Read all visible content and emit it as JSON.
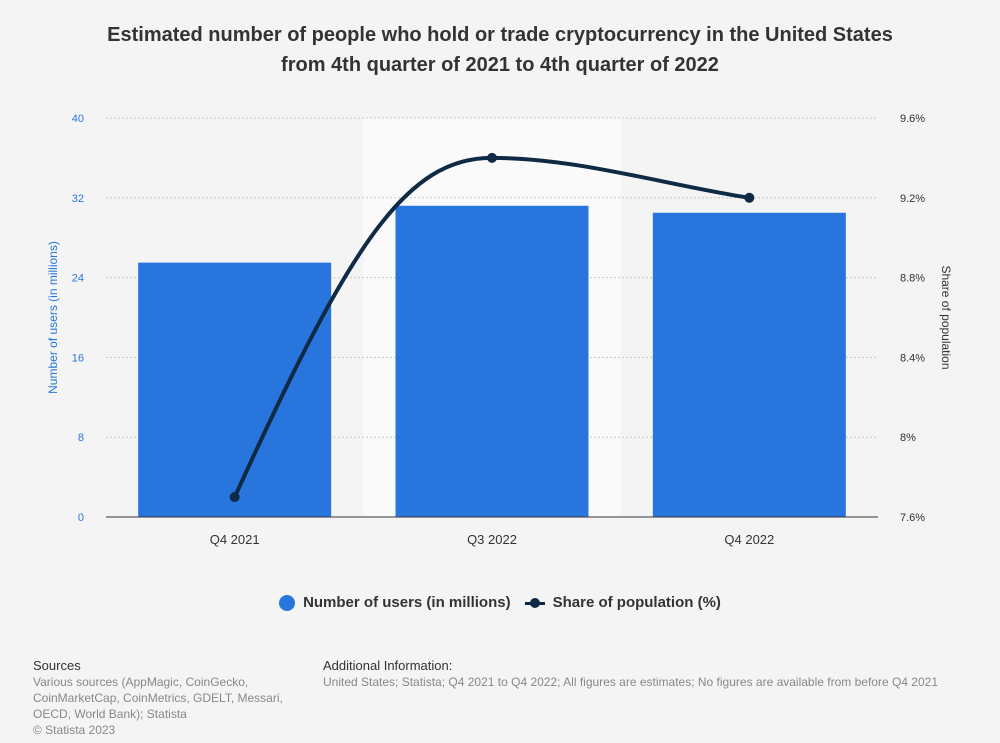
{
  "chart_data": {
    "type": "bar",
    "title": "Estimated number of people who hold or trade cryptocurrency in the United States from 4th quarter of 2021 to 4th quarter of 2022",
    "categories": [
      "Q4 2021",
      "Q3 2022",
      "Q4 2022"
    ],
    "series": [
      {
        "name": "Number of users (in millions)",
        "type": "bar",
        "axis": "left",
        "values": [
          25.5,
          31.2,
          30.5
        ]
      },
      {
        "name": "Share of population (%)",
        "type": "line",
        "axis": "right",
        "values": [
          7.7,
          9.4,
          9.2
        ]
      }
    ],
    "ylabel": "Number of users (in millions)",
    "ylim": [
      0,
      40
    ],
    "yticks": [
      "0",
      "8",
      "16",
      "24",
      "32",
      "40"
    ],
    "y2label": "Share of population",
    "y2lim": [
      7.6,
      9.6
    ],
    "y2ticks": [
      "7.6%",
      "8%",
      "8.4%",
      "8.8%",
      "9.2%",
      "9.6%"
    ],
    "highlighted_category": "Q3 2022",
    "grid": true,
    "legend_position": "bottom"
  },
  "colors": {
    "bar": "#2876dd",
    "line": "#0f2a44",
    "left_axis_text": "#2876dd",
    "text": "#333333",
    "grid": "#c8c8c8",
    "highlight_band": "#fafafa"
  },
  "title_line1": "Estimated number of people who hold or trade cryptocurrency in the United States",
  "title_line2": "from 4th quarter of 2021 to 4th quarter of 2022",
  "legend": {
    "bars_label": "Number of users (in millions)",
    "line_label": "Share of population (%)"
  },
  "sources": {
    "heading": "Sources",
    "line1": "Various sources (AppMagic, CoinGecko,",
    "line2": "CoinMarketCap, CoinMetrics, GDELT, Messari,",
    "line3": "OECD, World Bank); Statista",
    "copyright": "© Statista 2023"
  },
  "additional_info": {
    "heading": "Additional Information:",
    "text": "United States; Statista; Q4 2021 to Q4 2022; All figures are estimates; No figures are available from before Q4 2021"
  }
}
